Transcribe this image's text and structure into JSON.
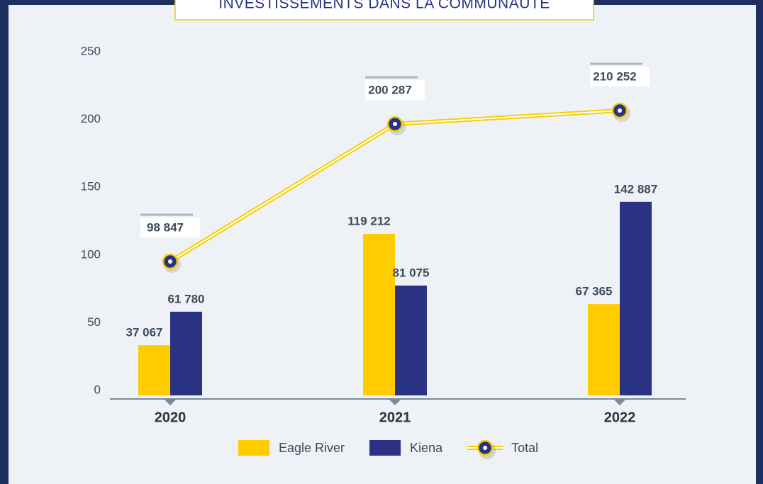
{
  "chart_data": {
    "type": "bar",
    "title": "INVESTISSEMENTS DANS LA COMMUNAUTÉ",
    "categories": [
      "2020",
      "2021",
      "2022"
    ],
    "ylim": [
      0,
      250
    ],
    "yticks": [
      0,
      50,
      100,
      150,
      200,
      250
    ],
    "series": [
      {
        "name": "Eagle River",
        "color": "#ffcc00",
        "values": [
          37.067,
          119.212,
          67.365
        ],
        "value_labels": [
          "37 067",
          "119 212",
          "67 365"
        ]
      },
      {
        "name": "Kiena",
        "color": "#2a3284",
        "values": [
          61.78,
          81.075,
          142.887
        ],
        "value_labels": [
          "61 780",
          "81 075",
          "142 887"
        ]
      },
      {
        "name": "Total",
        "type": "line",
        "color": "#f5d000",
        "values": [
          98.847,
          200.287,
          210.252
        ],
        "value_labels": [
          "98 847",
          "200 287",
          "210 252"
        ]
      }
    ]
  }
}
